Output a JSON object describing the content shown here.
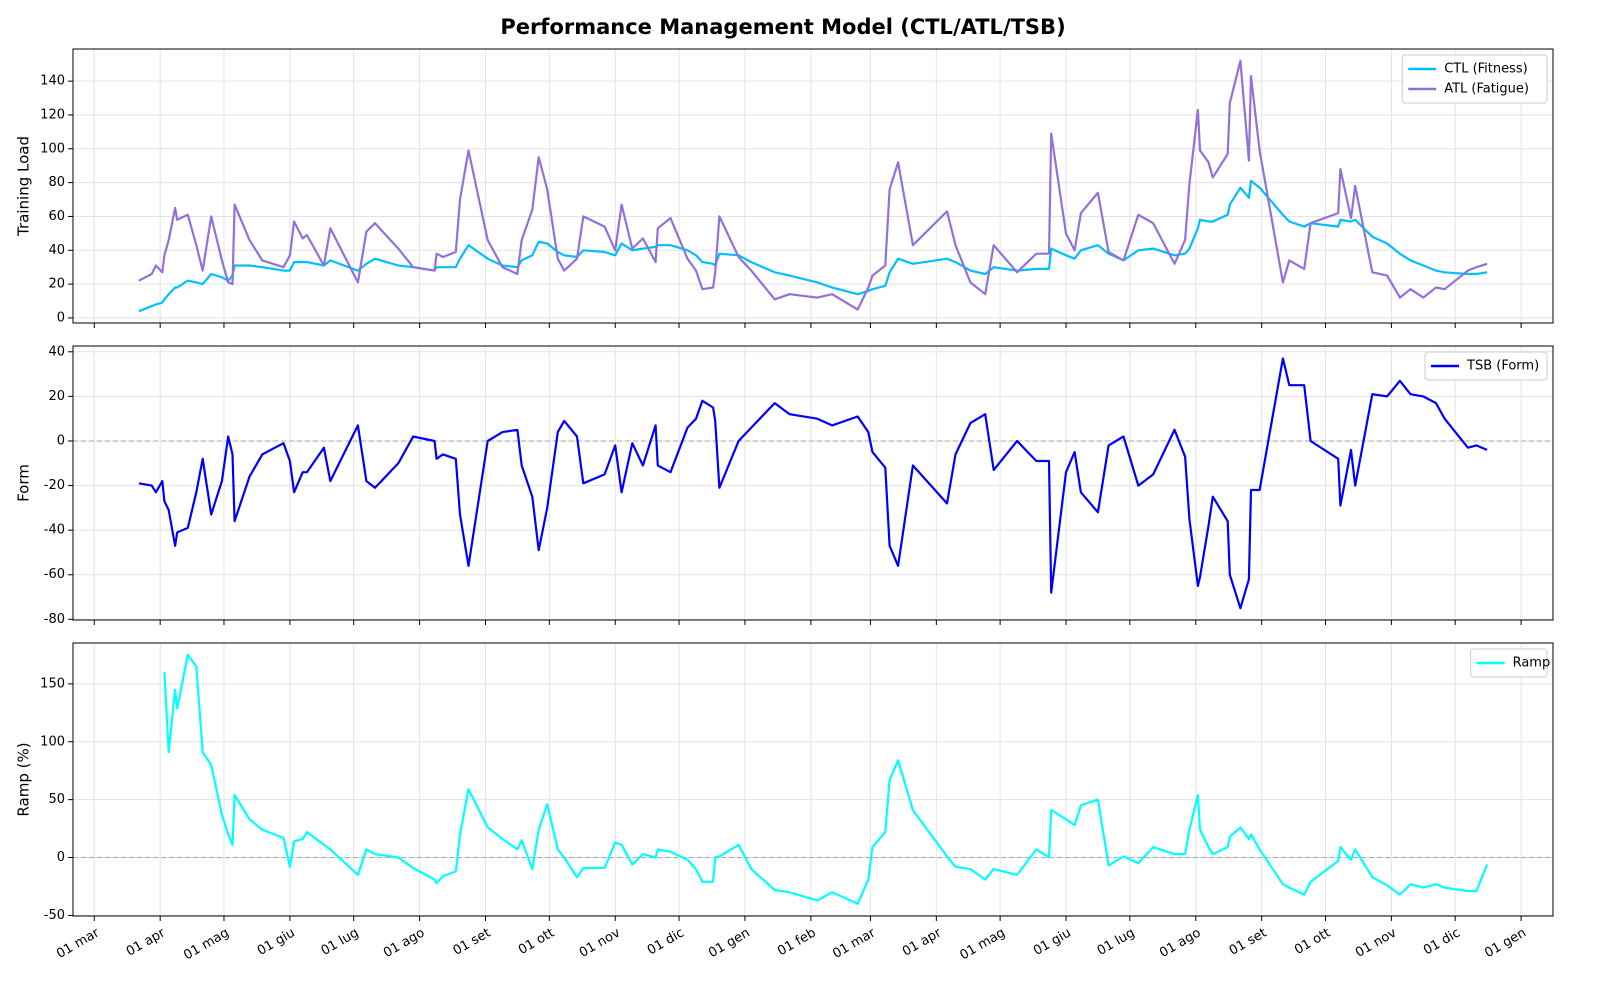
{
  "chart_data": {
    "type": "line",
    "title": "Performance Management Model (CTL/ATL/TSB)",
    "grid": true,
    "xlim": [
      -10,
      686
    ],
    "xticks": [
      {
        "value": 0,
        "label": "01 mar"
      },
      {
        "value": 31,
        "label": "01 apr"
      },
      {
        "value": 61,
        "label": "01 mag"
      },
      {
        "value": 92,
        "label": "01 giu"
      },
      {
        "value": 122,
        "label": "01 lug"
      },
      {
        "value": 153,
        "label": "01 ago"
      },
      {
        "value": 184,
        "label": "01 set"
      },
      {
        "value": 214,
        "label": "01 ott"
      },
      {
        "value": 245,
        "label": "01 nov"
      },
      {
        "value": 275,
        "label": "01 dic"
      },
      {
        "value": 306,
        "label": "01 gen"
      },
      {
        "value": 337,
        "label": "01 feb"
      },
      {
        "value": 365,
        "label": "01 mar"
      },
      {
        "value": 396,
        "label": "01 apr"
      },
      {
        "value": 426,
        "label": "01 mag"
      },
      {
        "value": 457,
        "label": "01 giu"
      },
      {
        "value": 487,
        "label": "01 lug"
      },
      {
        "value": 518,
        "label": "01 ago"
      },
      {
        "value": 549,
        "label": "01 set"
      },
      {
        "value": 579,
        "label": "01 ott"
      },
      {
        "value": 610,
        "label": "01 nov"
      },
      {
        "value": 640,
        "label": "01 dic"
      },
      {
        "value": 671,
        "label": "01 gen"
      }
    ],
    "x": [
      21,
      27,
      29,
      32,
      33,
      35,
      38,
      39,
      44,
      48,
      51,
      55,
      60,
      63,
      65,
      66,
      73,
      79,
      89,
      92,
      94,
      98,
      100,
      108,
      111,
      124,
      128,
      132,
      143,
      150,
      160,
      161,
      164,
      170,
      172,
      176,
      185,
      192,
      199,
      201,
      206,
      209,
      213,
      218,
      221,
      227,
      230,
      240,
      245,
      248,
      253,
      258,
      264,
      265,
      271,
      279,
      283,
      286,
      291,
      292,
      294,
      303,
      309,
      320,
      327,
      340,
      347,
      359,
      364,
      366,
      372,
      374,
      378,
      385,
      401,
      405,
      412,
      419,
      423,
      434,
      443,
      449,
      450,
      457,
      461,
      464,
      472,
      477,
      484,
      491,
      498,
      508,
      513,
      515,
      519,
      520,
      524,
      526,
      533,
      534,
      539,
      543,
      544,
      548,
      559,
      562,
      569,
      572,
      585,
      586,
      591,
      593,
      601,
      608,
      614,
      619,
      625,
      631,
      635,
      646,
      650,
      655
    ],
    "panels": [
      {
        "ylabel": "Training Load",
        "ylim": [
          -3,
          159
        ],
        "yticks": [
          0,
          20,
          40,
          60,
          80,
          100,
          120,
          140
        ],
        "legend": "upper right",
        "zero_line": false,
        "series": [
          {
            "name": "CTL (Fitness)",
            "color": "#00bfff",
            "values": [
              4,
              7,
              8,
              9,
              11,
              14,
              18,
              18,
              22,
              21,
              20,
              26,
              24,
              22,
              25,
              31,
              31,
              30,
              28,
              28,
              33,
              33,
              33,
              31,
              34,
              28,
              32,
              35,
              31,
              30,
              28,
              30,
              30,
              30,
              35,
              43,
              35,
              31,
              30,
              34,
              37,
              45,
              44,
              39,
              37,
              36,
              40,
              39,
              37,
              44,
              40,
              41,
              42,
              43,
              43,
              40,
              37,
              33,
              32,
              31,
              38,
              37,
              33,
              27,
              25,
              21,
              18,
              14,
              16,
              17,
              19,
              27,
              35,
              32,
              35,
              33,
              28,
              26,
              30,
              28,
              29,
              29,
              41,
              37,
              35,
              40,
              43,
              38,
              34,
              40,
              41,
              37,
              38,
              41,
              53,
              58,
              57,
              57,
              61,
              67,
              77,
              71,
              81,
              77,
              61,
              57,
              54,
              56,
              54,
              58,
              57,
              58,
              48,
              44,
              38,
              34,
              31,
              28,
              27,
              26,
              26,
              27
            ]
          },
          {
            "name": "ATL (Fatigue)",
            "color": "#9370db",
            "values": [
              22,
              26,
              31,
              27,
              37,
              46,
              65,
              58,
              61,
              43,
              28,
              60,
              34,
              21,
              20,
              67,
              46,
              34,
              30,
              37,
              57,
              47,
              49,
              31,
              53,
              21,
              51,
              56,
              41,
              30,
              28,
              38,
              36,
              39,
              70,
              99,
              46,
              30,
              26,
              46,
              64,
              95,
              76,
              35,
              28,
              35,
              60,
              54,
              40,
              67,
              41,
              47,
              33,
              53,
              59,
              35,
              28,
              17,
              18,
              27,
              60,
              36,
              28,
              11,
              14,
              12,
              14,
              5,
              18,
              25,
              31,
              76,
              92,
              43,
              63,
              43,
              21,
              14,
              43,
              27,
              38,
              38,
              109,
              50,
              40,
              62,
              74,
              39,
              34,
              61,
              56,
              32,
              46,
              79,
              123,
              99,
              92,
              83,
              97,
              127,
              152,
              93,
              143,
              99,
              21,
              34,
              29,
              56,
              62,
              88,
              59,
              78,
              27,
              25,
              12,
              17,
              12,
              18,
              17,
              28,
              30,
              32
            ]
          }
        ]
      },
      {
        "ylabel": "Form",
        "ylim": [
          -80.3,
          42.6
        ],
        "yticks": [
          -80,
          -60,
          -40,
          -20,
          0,
          20,
          40
        ],
        "legend": "upper right",
        "zero_line": true,
        "series": [
          {
            "name": "TSB (Form)",
            "color": "#0000ff",
            "values": [
              -19,
              -20,
              -23,
              -18,
              -27,
              -31,
              -47,
              -41,
              -39,
              -23,
              -8,
              -33,
              -18,
              2,
              -6,
              -36,
              -16,
              -6,
              -1,
              -9,
              -23,
              -14,
              -14,
              -3,
              -18,
              7,
              -18,
              -21,
              -10,
              2,
              0,
              -8,
              -6,
              -8,
              -33,
              -56,
              0,
              4,
              5,
              -11,
              -25,
              -49,
              -30,
              4,
              9,
              2,
              -19,
              -15,
              -2,
              -23,
              -1,
              -11,
              7,
              -11,
              -14,
              6,
              10,
              18,
              15,
              9,
              -21,
              0,
              6,
              17,
              12,
              10,
              7,
              11,
              4,
              -5,
              -12,
              -47,
              -56,
              -11,
              -28,
              -6,
              8,
              12,
              -13,
              0,
              -9,
              -9,
              -68,
              -14,
              -5,
              -23,
              -32,
              -2,
              2,
              -20,
              -15,
              5,
              -7,
              -35,
              -65,
              -61,
              -38,
              -25,
              -36,
              -60,
              -75,
              -62,
              -22,
              -22,
              37,
              25,
              25,
              0,
              -8,
              -29,
              -4,
              -20,
              21,
              20,
              27,
              21,
              20,
              17,
              10,
              -3,
              -2,
              -4
            ]
          }
        ]
      },
      {
        "ylabel": "Ramp (%)",
        "ylim": [
          -50.5,
          185.3
        ],
        "yticks": [
          -50,
          0,
          50,
          100,
          150
        ],
        "legend": "upper right",
        "zero_line": true,
        "series": [
          {
            "name": "Ramp",
            "color": "#00ffff",
            "values": [
              null,
              null,
              null,
              null,
              160,
              91,
              145,
              129,
              175,
              165,
              91,
              80,
              37,
              20,
              11,
              54,
              33,
              24,
              17,
              -8,
              14,
              16,
              22,
              11,
              7,
              -15,
              7,
              3,
              0,
              -9,
              -19,
              -22,
              -16,
              -12,
              20,
              59,
              26,
              16,
              7,
              15,
              -10,
              24,
              46,
              7,
              0,
              -17,
              -9,
              -9,
              13,
              11,
              -6,
              3,
              0,
              7,
              5,
              -2,
              -10,
              -21,
              -21,
              0,
              1,
              11,
              -10,
              -28,
              -30,
              -37,
              -30,
              -40,
              -19,
              9,
              22,
              67,
              84,
              41,
              1,
              -8,
              -10,
              -19,
              -10,
              -15,
              7,
              0,
              41,
              33,
              28,
              45,
              50,
              -7,
              1,
              -5,
              9,
              3,
              3,
              24,
              54,
              24,
              9,
              3,
              9,
              18,
              26,
              16,
              20,
              7,
              -23,
              -26,
              -32,
              -21,
              -3,
              9,
              -2,
              7,
              -17,
              -24,
              -32,
              -23,
              -26,
              -23,
              -26,
              -29,
              -29,
              -6
            ]
          }
        ]
      }
    ]
  }
}
